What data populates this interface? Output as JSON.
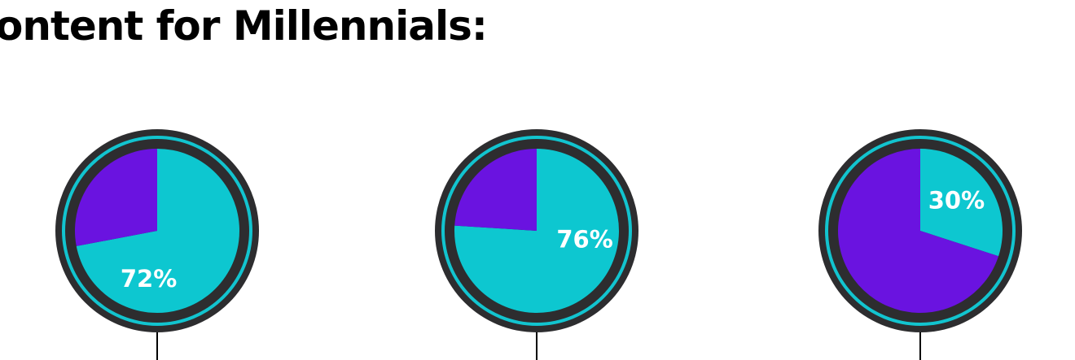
{
  "heading": "ontent for Millennials:",
  "colors": {
    "ring_outer": "#2d2d2f",
    "ring_accent": "#12c4cf",
    "teal": "#0dc7d0",
    "purple": "#6a13e0",
    "label": "#ffffff",
    "stem": "#000000"
  },
  "chart_data": [
    {
      "type": "pie",
      "label": "72%",
      "slices": [
        {
          "color": "teal",
          "value": 72
        },
        {
          "color": "purple",
          "value": 28
        }
      ]
    },
    {
      "type": "pie",
      "label": "76%",
      "slices": [
        {
          "color": "teal",
          "value": 76
        },
        {
          "color": "purple",
          "value": 24
        }
      ]
    },
    {
      "type": "pie",
      "label": "30%",
      "slices": [
        {
          "color": "teal",
          "value": 30
        },
        {
          "color": "purple",
          "value": 70
        }
      ]
    }
  ]
}
